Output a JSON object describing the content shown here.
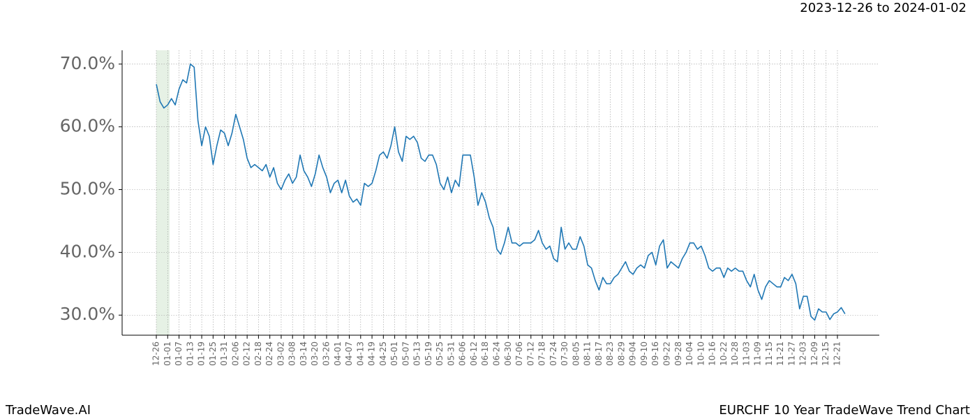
{
  "chart_data": {
    "type": "line",
    "title": "EURCHF 10 Year TradeWave Trend Chart",
    "subtitle": "2023-12-26 to 2024-01-02",
    "source": "TradeWave.AI",
    "categories": [
      "12-26",
      null,
      null,
      "01-01",
      null,
      null,
      "01-07",
      null,
      null,
      "01-13",
      null,
      null,
      "01-19",
      null,
      null,
      "01-25",
      null,
      null,
      "01-31",
      null,
      null,
      "02-06",
      null,
      null,
      "02-12",
      null,
      null,
      "02-18",
      null,
      null,
      "02-24",
      null,
      null,
      "03-02",
      null,
      null,
      "03-08",
      null,
      null,
      "03-14",
      null,
      null,
      "03-20",
      null,
      null,
      "03-26",
      null,
      null,
      "04-01",
      null,
      null,
      "04-07",
      null,
      null,
      "04-13",
      null,
      null,
      "04-19",
      null,
      null,
      "04-25",
      null,
      null,
      "05-01",
      null,
      null,
      "05-07",
      null,
      null,
      "05-13",
      null,
      null,
      "05-19",
      null,
      null,
      "05-25",
      null,
      null,
      "05-31",
      null,
      null,
      "06-06",
      null,
      null,
      "06-12",
      null,
      null,
      "06-18",
      null,
      null,
      "06-24",
      null,
      null,
      "06-30",
      null,
      null,
      "07-06",
      null,
      null,
      "07-12",
      null,
      null,
      "07-18",
      null,
      null,
      "07-24",
      null,
      null,
      "07-30",
      null,
      null,
      "08-05",
      null,
      null,
      "08-11",
      null,
      null,
      "08-17",
      null,
      null,
      "08-23",
      null,
      null,
      "08-29",
      null,
      null,
      "09-04",
      null,
      null,
      "09-10",
      null,
      null,
      "09-16",
      null,
      null,
      "09-22",
      null,
      null,
      "09-28",
      null,
      null,
      "10-04",
      null,
      null,
      "10-10",
      null,
      null,
      "10-16",
      null,
      null,
      "10-22",
      null,
      null,
      "10-28",
      null,
      null,
      "11-03",
      null,
      null,
      "11-09",
      null,
      null,
      "11-15",
      null,
      null,
      "11-21",
      null,
      null,
      "11-27",
      null,
      null,
      "12-03",
      null,
      null,
      "12-09",
      null,
      null,
      "12-15",
      null,
      null,
      "12-21",
      null,
      null
    ],
    "series": [
      {
        "color": "#1f77b4",
        "values": [
          66.8,
          64,
          63,
          63.5,
          64.5,
          63.5,
          66,
          67.5,
          67,
          70,
          69.5,
          61,
          57,
          60,
          58.5,
          54,
          57,
          59.5,
          59,
          57,
          59,
          62,
          60,
          58,
          55,
          53.5,
          54,
          53.5,
          53,
          54,
          52,
          53.5,
          51,
          50,
          51.5,
          52.5,
          51,
          52,
          55.5,
          53,
          52,
          50.5,
          52.5,
          55.5,
          53.5,
          52,
          49.5,
          51,
          51.5,
          49.5,
          51.5,
          49,
          48,
          48.5,
          47.5,
          51,
          50.5,
          51,
          53,
          55.5,
          56,
          55,
          57,
          60,
          56,
          54.5,
          58.5,
          58,
          58.5,
          57.5,
          55,
          54.5,
          55.5,
          55.5,
          54,
          51,
          50,
          52,
          49.5,
          51.5,
          50.5,
          55.5,
          55.5,
          55.5,
          52,
          47.5,
          49.5,
          48,
          45.5,
          44,
          40.5,
          39.7,
          41.5,
          44,
          41.5,
          41.5,
          41,
          41.5,
          41.5,
          41.5,
          42,
          43.5,
          41.5,
          40.5,
          41,
          39,
          38.5,
          44,
          40.5,
          41.5,
          40.5,
          40.5,
          42.5,
          41,
          38,
          37.5,
          35.5,
          34,
          36,
          35,
          35,
          36,
          36.5,
          37.5,
          38.5,
          37,
          36.5,
          37.5,
          38,
          37.5,
          39.5,
          40,
          38,
          41,
          42,
          37.5,
          38.5,
          38,
          37.5,
          39,
          40,
          41.5,
          41.5,
          40.5,
          41,
          39.5,
          37.5,
          37,
          37.5,
          37.5,
          36,
          37.5,
          37,
          37.5,
          37,
          37,
          35.5,
          34.5,
          36.5,
          34,
          32.5,
          34.5,
          35.5,
          35,
          34.5,
          34.5,
          36,
          35.5,
          36.5,
          35,
          31,
          33,
          33,
          29.8,
          29.2,
          31,
          30.5,
          30.5,
          29.3,
          30.2,
          30.5,
          31.2,
          30.2
        ]
      }
    ],
    "ylim": [
      26.8,
      72.2
    ],
    "yticks": [
      {
        "value": 30,
        "label": "30.0%"
      },
      {
        "value": 40,
        "label": "40.0%"
      },
      {
        "value": 50,
        "label": "50.0%"
      },
      {
        "value": 60,
        "label": "60.0%"
      },
      {
        "value": 70,
        "label": "70.0%"
      }
    ],
    "grid": true
  }
}
